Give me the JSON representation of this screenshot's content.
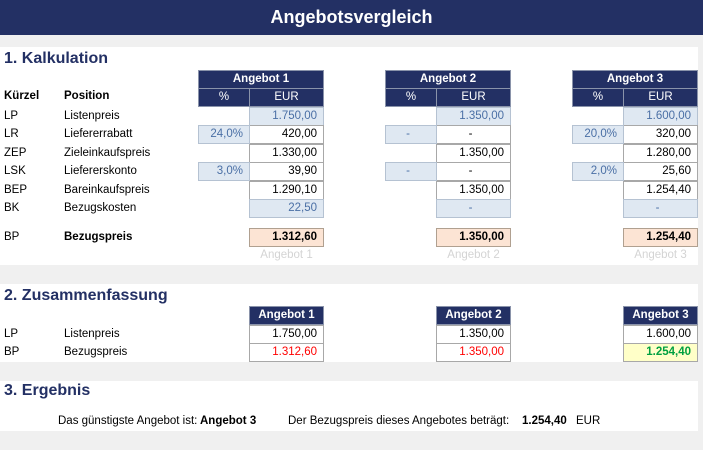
{
  "title": "Angebotsvergleich",
  "kalkulation": {
    "title": "1. Kalkulation",
    "col_kuerzel": "Kürzel",
    "col_position": "Position",
    "pct_label": "%",
    "eur_label": "EUR",
    "rows": [
      {
        "code": "LP",
        "label": "Listenpreis"
      },
      {
        "code": "LR",
        "label": "Liefererrabatt"
      },
      {
        "code": "ZEP",
        "label": "Zieleinkaufspreis"
      },
      {
        "code": "LSK",
        "label": "Liefererskonto"
      },
      {
        "code": "BEP",
        "label": "Bareinkaufspreis"
      },
      {
        "code": "BK",
        "label": "Bezugskosten"
      },
      {
        "code": "BP",
        "label": "Bezugspreis"
      }
    ],
    "offers": [
      {
        "name": "Angebot 1",
        "lr_pct": "24,0%",
        "lsk_pct": "3,0%",
        "lp": "1.750,00",
        "lr": "420,00",
        "zep": "1.330,00",
        "lsk": "39,90",
        "bep": "1.290,10",
        "bk": "22,50",
        "bp": "1.312,60",
        "footer": "Angebot 1"
      },
      {
        "name": "Angebot 2",
        "lr_pct": "-",
        "lsk_pct": "-",
        "lp": "1.350,00",
        "lr": "-",
        "zep": "1.350,00",
        "lsk": "-",
        "bep": "1.350,00",
        "bk": "-",
        "bp": "1.350,00",
        "footer": "Angebot 2"
      },
      {
        "name": "Angebot 3",
        "lr_pct": "20,0%",
        "lsk_pct": "2,0%",
        "lp": "1.600,00",
        "lr": "320,00",
        "zep": "1.280,00",
        "lsk": "25,60",
        "bep": "1.254,40",
        "bk": "-",
        "bp": "1.254,40",
        "footer": "Angebot 3"
      }
    ]
  },
  "zusammenfassung": {
    "title": "2. Zusammenfassung",
    "rows": [
      {
        "code": "LP",
        "label": "Listenpreis"
      },
      {
        "code": "BP",
        "label": "Bezugspreis"
      }
    ],
    "offers": [
      {
        "name": "Angebot 1",
        "lp": "1.750,00",
        "bp": "1.312,60",
        "best": false
      },
      {
        "name": "Angebot 2",
        "lp": "1.350,00",
        "bp": "1.350,00",
        "best": false
      },
      {
        "name": "Angebot 3",
        "lp": "1.600,00",
        "bp": "1.254,40",
        "best": true
      }
    ]
  },
  "ergebnis": {
    "title": "3. Ergebnis",
    "best_label": "Das günstigste Angebot ist:",
    "best_value": "Angebot 3",
    "price_label": "Der Bezugspreis dieses Angebotes beträgt:",
    "price_value": "1.254,40",
    "currency": "EUR"
  },
  "colors": {
    "header": "#233064",
    "input": "#dfe8f2",
    "result": "#fce4d4",
    "worse": "#ff0000",
    "best": "#00a040",
    "best_bg": "#ffffc8"
  }
}
